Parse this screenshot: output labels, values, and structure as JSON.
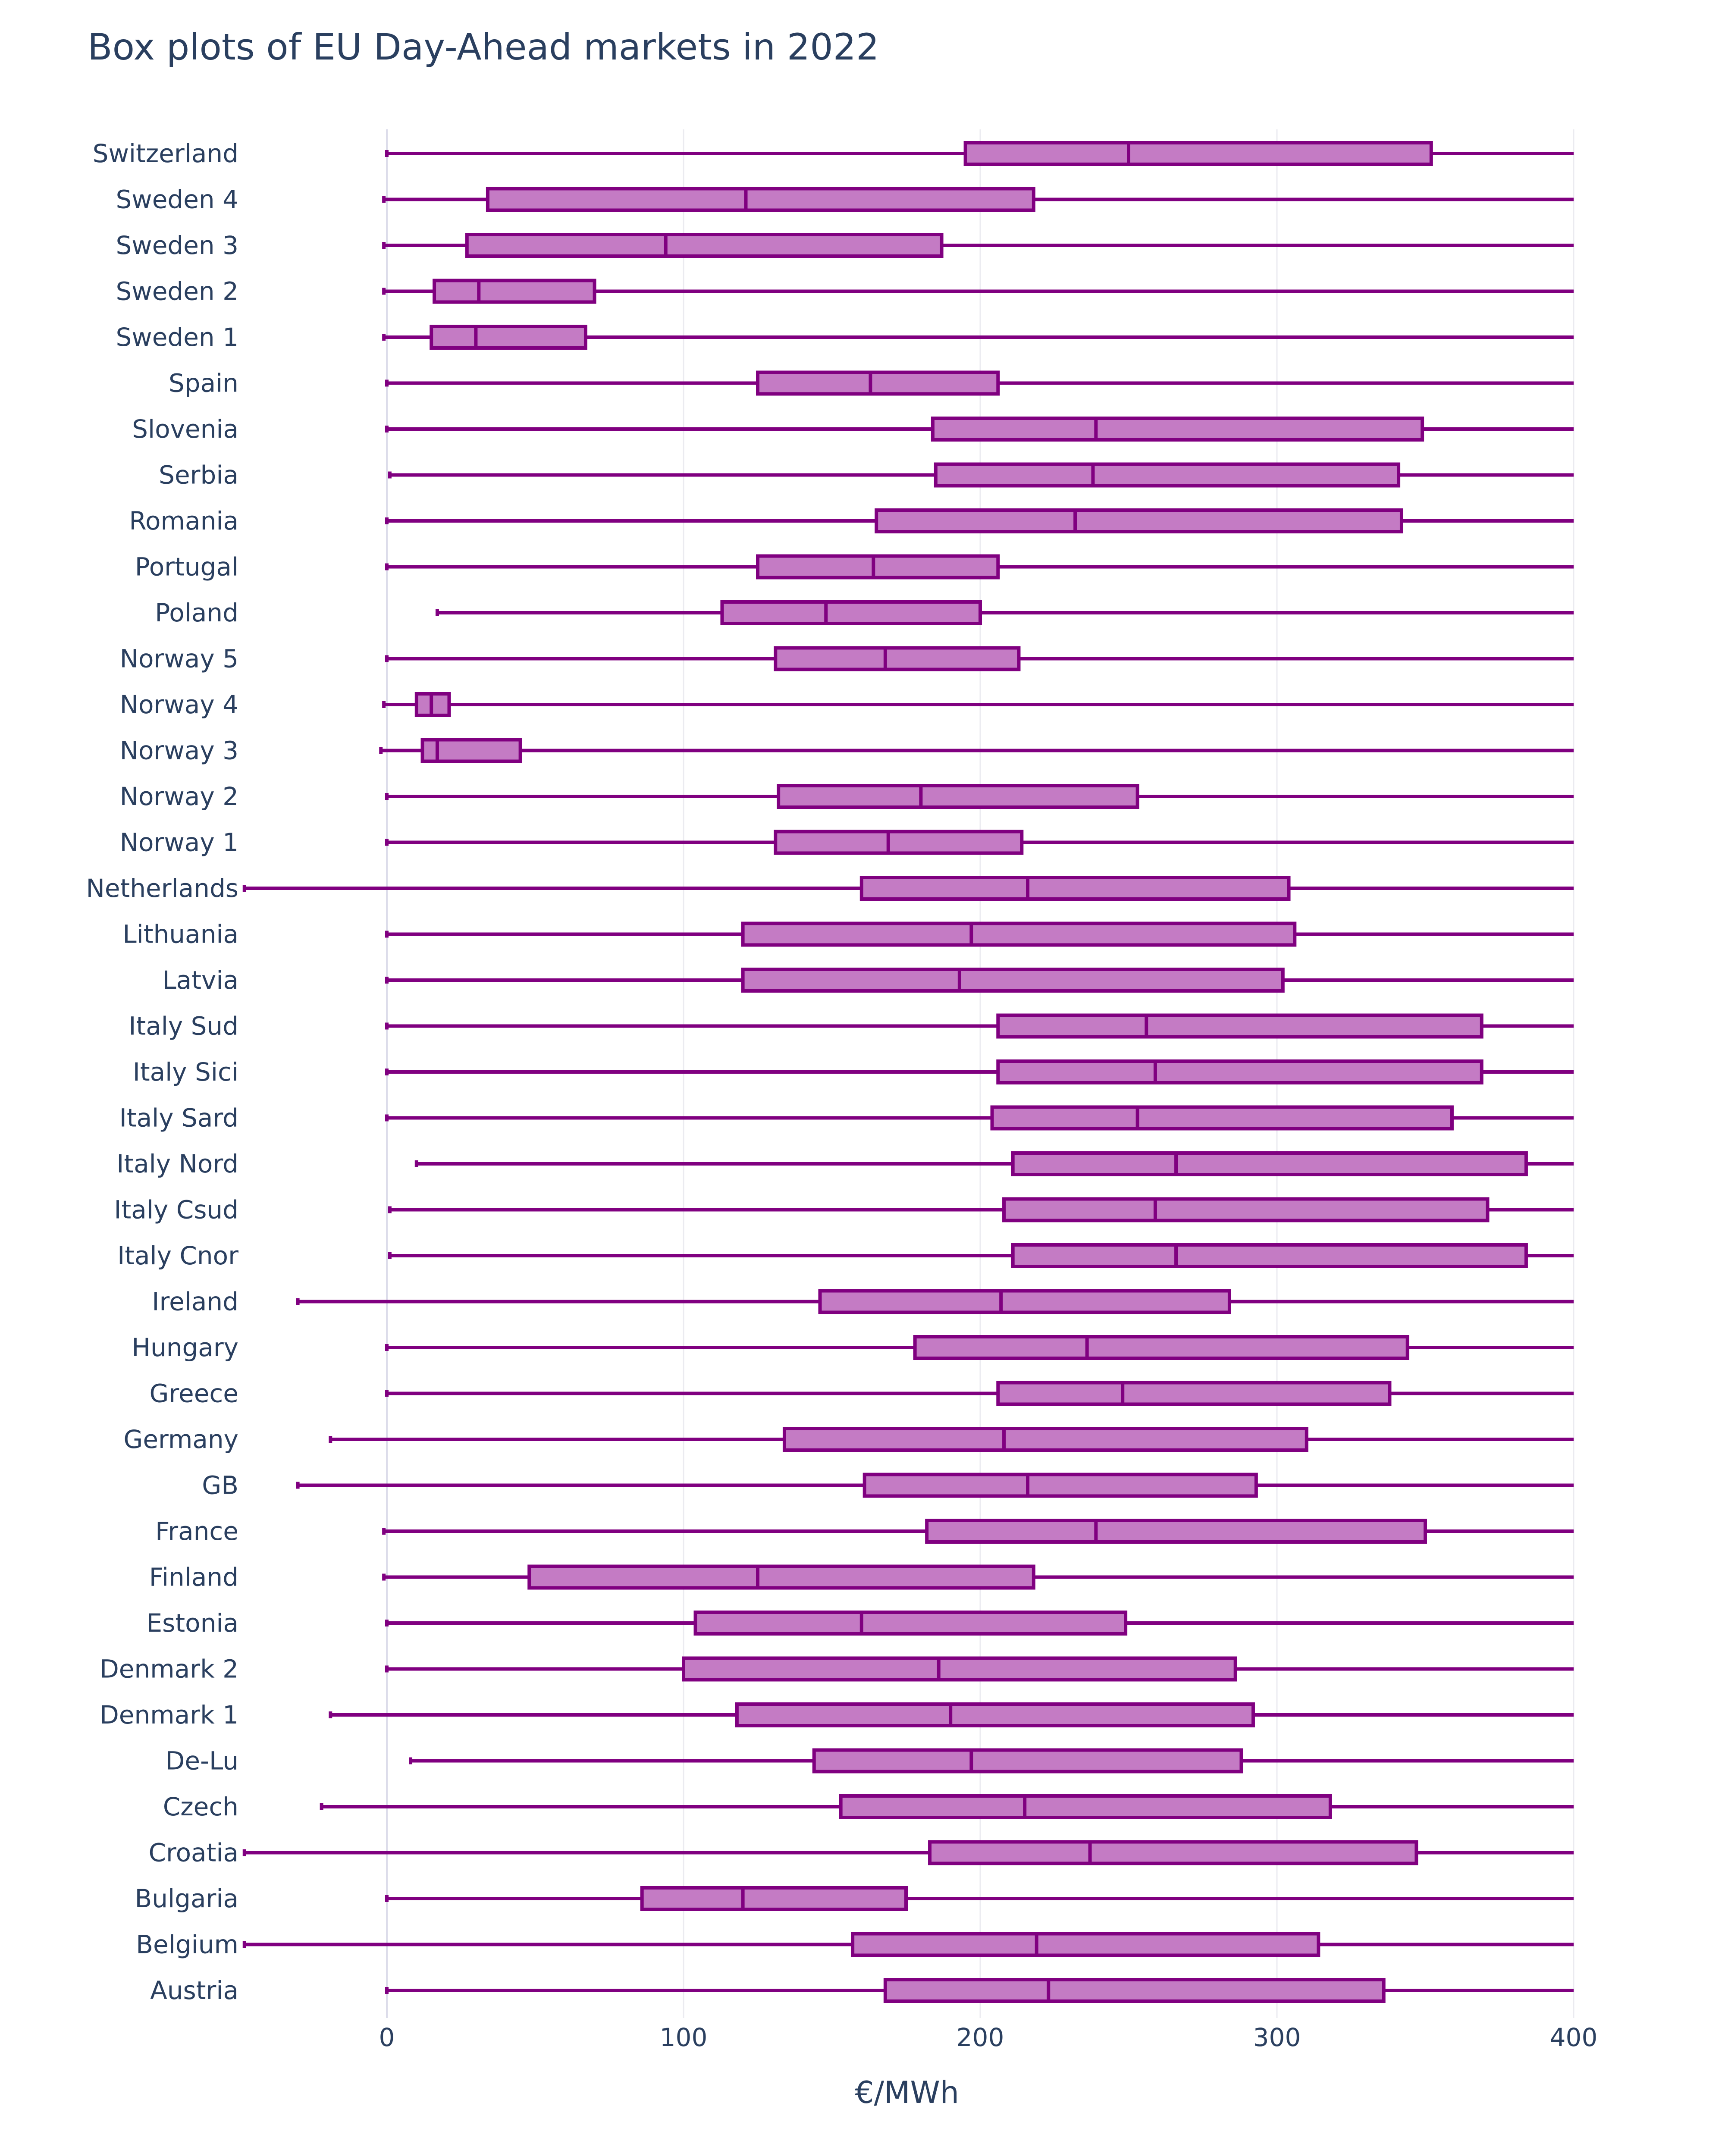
{
  "chart_data": {
    "type": "box",
    "orientation": "horizontal",
    "title": "Box plots of EU Day-Ahead markets in 2022",
    "xlabel": "€/MWh",
    "ylabel": "",
    "xlim": [
      -48,
      400
    ],
    "xticks": [
      0,
      100,
      200,
      300,
      400
    ],
    "grid": "vertical",
    "legend": "none",
    "colors": {
      "line": "#800080",
      "fill": "#c47bc4",
      "text": "#2a3f5f",
      "grid": "#ebebf0"
    },
    "series": [
      {
        "name": "Switzerland",
        "min": 0,
        "q1": 195,
        "median": 250,
        "q3": 352,
        "max": 400
      },
      {
        "name": "Sweden 4",
        "min": -1,
        "q1": 34,
        "median": 121,
        "q3": 218,
        "max": 400
      },
      {
        "name": "Sweden 3",
        "min": -1,
        "q1": 27,
        "median": 94,
        "q3": 187,
        "max": 400
      },
      {
        "name": "Sweden 2",
        "min": -1,
        "q1": 16,
        "median": 31,
        "q3": 70,
        "max": 400
      },
      {
        "name": "Sweden 1",
        "min": -1,
        "q1": 15,
        "median": 30,
        "q3": 67,
        "max": 400
      },
      {
        "name": "Spain",
        "min": 0,
        "q1": 125,
        "median": 163,
        "q3": 206,
        "max": 400
      },
      {
        "name": "Slovenia",
        "min": 0,
        "q1": 184,
        "median": 239,
        "q3": 349,
        "max": 400
      },
      {
        "name": "Serbia",
        "min": 1,
        "q1": 185,
        "median": 238,
        "q3": 341,
        "max": 400
      },
      {
        "name": "Romania",
        "min": 0,
        "q1": 165,
        "median": 232,
        "q3": 342,
        "max": 400
      },
      {
        "name": "Portugal",
        "min": 0,
        "q1": 125,
        "median": 164,
        "q3": 206,
        "max": 400
      },
      {
        "name": "Poland",
        "min": 17,
        "q1": 113,
        "median": 148,
        "q3": 200,
        "max": 400
      },
      {
        "name": "Norway 5",
        "min": 0,
        "q1": 131,
        "median": 168,
        "q3": 213,
        "max": 400
      },
      {
        "name": "Norway 4",
        "min": -1,
        "q1": 10,
        "median": 15,
        "q3": 21,
        "max": 400
      },
      {
        "name": "Norway 3",
        "min": -2,
        "q1": 12,
        "median": 17,
        "q3": 45,
        "max": 400
      },
      {
        "name": "Norway 2",
        "min": 0,
        "q1": 132,
        "median": 180,
        "q3": 253,
        "max": 400
      },
      {
        "name": "Norway 1",
        "min": 0,
        "q1": 131,
        "median": 169,
        "q3": 214,
        "max": 400
      },
      {
        "name": "Netherlands",
        "min": -48,
        "q1": 160,
        "median": 216,
        "q3": 304,
        "max": 400
      },
      {
        "name": "Lithuania",
        "min": 0,
        "q1": 120,
        "median": 197,
        "q3": 306,
        "max": 400
      },
      {
        "name": "Latvia",
        "min": 0,
        "q1": 120,
        "median": 193,
        "q3": 302,
        "max": 400
      },
      {
        "name": "Italy Sud",
        "min": 0,
        "q1": 206,
        "median": 256,
        "q3": 369,
        "max": 400
      },
      {
        "name": "Italy Sici",
        "min": 0,
        "q1": 206,
        "median": 259,
        "q3": 369,
        "max": 400
      },
      {
        "name": "Italy Sard",
        "min": 0,
        "q1": 204,
        "median": 253,
        "q3": 359,
        "max": 400
      },
      {
        "name": "Italy Nord",
        "min": 10,
        "q1": 211,
        "median": 266,
        "q3": 384,
        "max": 400
      },
      {
        "name": "Italy Csud",
        "min": 1,
        "q1": 208,
        "median": 259,
        "q3": 371,
        "max": 400
      },
      {
        "name": "Italy Cnor",
        "min": 1,
        "q1": 211,
        "median": 266,
        "q3": 384,
        "max": 400
      },
      {
        "name": "Ireland",
        "min": -30,
        "q1": 146,
        "median": 207,
        "q3": 284,
        "max": 400
      },
      {
        "name": "Hungary",
        "min": 0,
        "q1": 178,
        "median": 236,
        "q3": 344,
        "max": 400
      },
      {
        "name": "Greece",
        "min": 0,
        "q1": 206,
        "median": 248,
        "q3": 338,
        "max": 400
      },
      {
        "name": "Germany",
        "min": -19,
        "q1": 134,
        "median": 208,
        "q3": 310,
        "max": 400
      },
      {
        "name": "GB",
        "min": -30,
        "q1": 161,
        "median": 216,
        "q3": 293,
        "max": 400
      },
      {
        "name": "France",
        "min": -1,
        "q1": 182,
        "median": 239,
        "q3": 350,
        "max": 400
      },
      {
        "name": "Finland",
        "min": -1,
        "q1": 48,
        "median": 125,
        "q3": 218,
        "max": 400
      },
      {
        "name": "Estonia",
        "min": 0,
        "q1": 104,
        "median": 160,
        "q3": 249,
        "max": 400
      },
      {
        "name": "Denmark 2",
        "min": 0,
        "q1": 100,
        "median": 186,
        "q3": 286,
        "max": 400
      },
      {
        "name": "Denmark 1",
        "min": -19,
        "q1": 118,
        "median": 190,
        "q3": 292,
        "max": 400
      },
      {
        "name": "De-Lu",
        "min": 8,
        "q1": 144,
        "median": 197,
        "q3": 288,
        "max": 400
      },
      {
        "name": "Czech",
        "min": -22,
        "q1": 153,
        "median": 215,
        "q3": 318,
        "max": 400
      },
      {
        "name": "Croatia",
        "min": -48,
        "q1": 183,
        "median": 237,
        "q3": 347,
        "max": 400
      },
      {
        "name": "Bulgaria",
        "min": 0,
        "q1": 86,
        "median": 120,
        "q3": 175,
        "max": 400
      },
      {
        "name": "Belgium",
        "min": -48,
        "q1": 157,
        "median": 219,
        "q3": 314,
        "max": 400
      },
      {
        "name": "Austria",
        "min": 0,
        "q1": 168,
        "median": 223,
        "q3": 336,
        "max": 400
      }
    ]
  }
}
